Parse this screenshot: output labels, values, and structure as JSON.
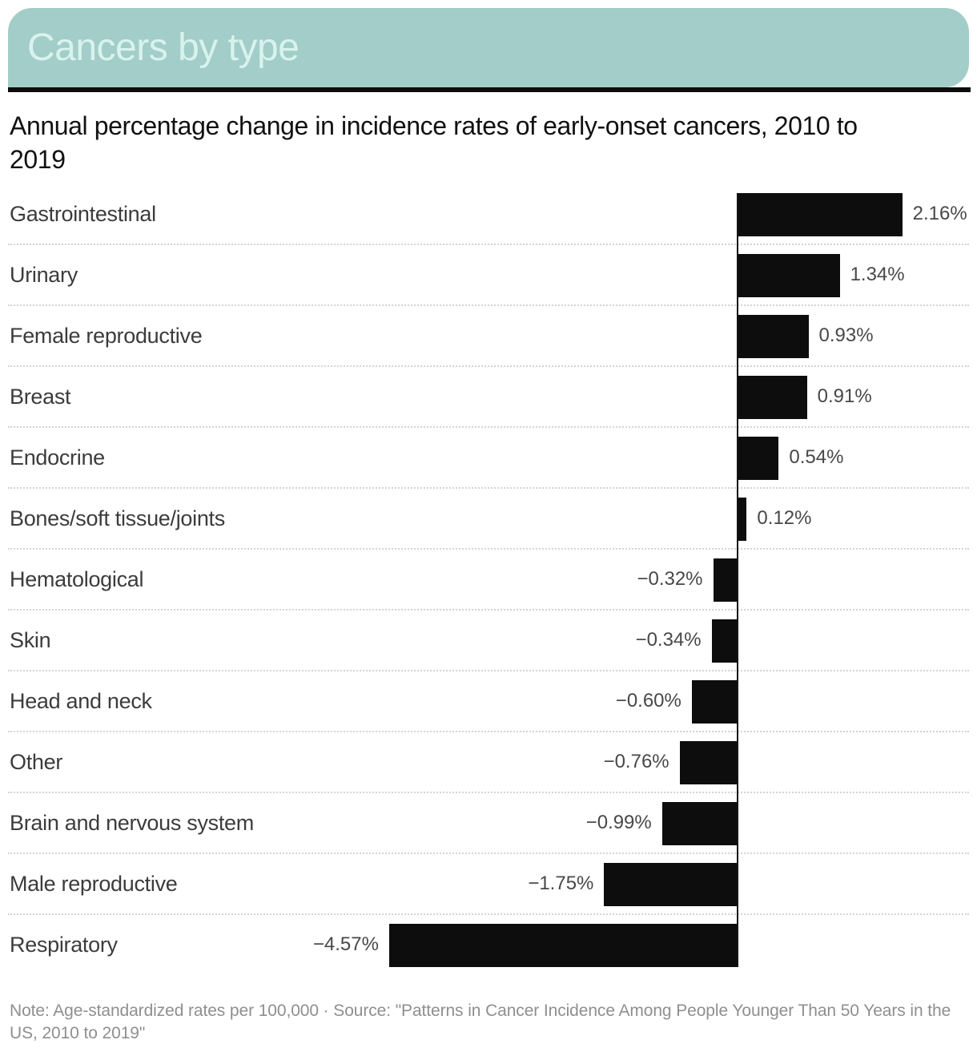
{
  "header": {
    "title": "Cancers by type"
  },
  "subtitle": "Annual percentage change in incidence rates of early-onset cancers, 2010 to 2019",
  "note": "Note: Age-standardized rates per 100,000 · Source: \"Patterns in Cancer Incidence Among People Younger Than 50 Years in the US, 2010 to 2019\"",
  "colors": {
    "header_bg": "#a3cdc8",
    "header_text": "#d8f3ee",
    "rule": "#0c0c0c",
    "bar": "#0d0d0d",
    "zero_line": "#141414",
    "category_text": "#3c3c3c",
    "value_text": "#484848",
    "note_text": "#8f8f8f",
    "separator": "#d4d4d4"
  },
  "chart_data": {
    "type": "bar",
    "orientation": "horizontal",
    "title": "Cancers by type",
    "subtitle": "Annual percentage change in incidence rates of early-onset cancers, 2010 to 2019",
    "value_unit": "percent",
    "categories": [
      "Gastrointestinal",
      "Urinary",
      "Female reproductive",
      "Breast",
      "Endocrine",
      "Bones/soft tissue/joints",
      "Hematological",
      "Skin",
      "Head and neck",
      "Other",
      "Brain and nervous system",
      "Male reproductive",
      "Respiratory"
    ],
    "values": [
      2.16,
      1.34,
      0.93,
      0.91,
      0.54,
      0.12,
      -0.32,
      -0.34,
      -0.6,
      -0.76,
      -0.99,
      -1.75,
      -4.57
    ],
    "labels": [
      "2.16%",
      "1.34%",
      "0.93%",
      "0.91%",
      "0.54%",
      "0.12%",
      "−0.32%",
      "−0.34%",
      "−0.60%",
      "−0.76%",
      "−0.99%",
      "−1.75%",
      "−4.57%"
    ],
    "xlim": [
      -4.57,
      2.16
    ],
    "axis_visible": false,
    "grid": false,
    "legend": "none",
    "baseline": 0,
    "row_separators": "dotted"
  }
}
